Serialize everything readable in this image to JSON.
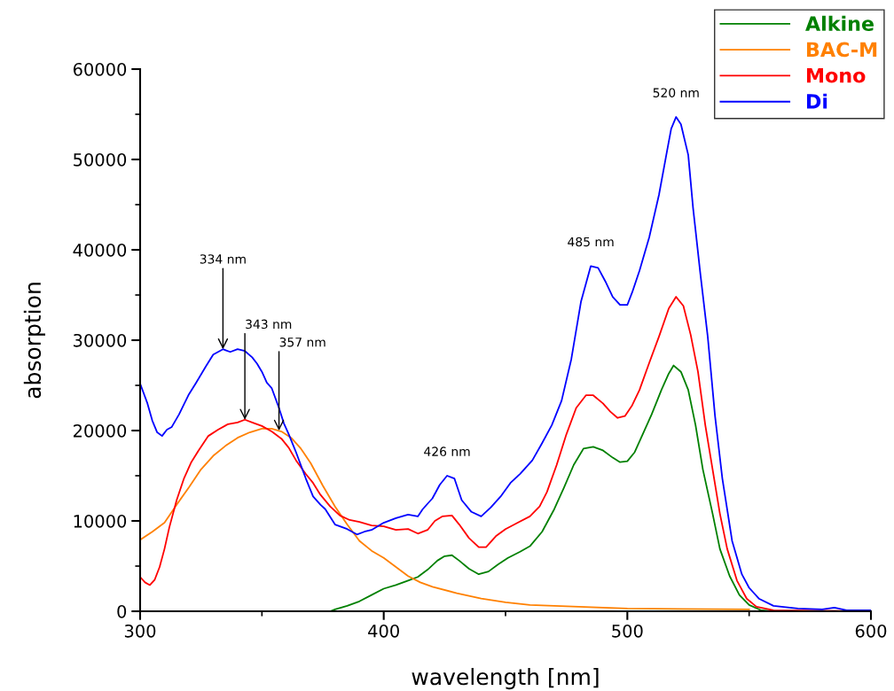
{
  "chart_data": {
    "type": "line",
    "xlabel": "wavelength [nm]",
    "ylabel": "absorption",
    "xlim": [
      300,
      600
    ],
    "xticks": [
      300,
      {
        "value": 350,
        "label": null
      },
      400,
      {
        "value": 450,
        "label": null
      },
      500,
      {
        "value": 550,
        "label": null
      },
      600
    ],
    "ylim": [
      0,
      60000
    ],
    "yticks": [
      0,
      {
        "value": 5000,
        "label": null
      },
      10000,
      {
        "value": 15000,
        "label": null
      },
      20000,
      {
        "value": 25000,
        "label": null
      },
      30000,
      {
        "value": 35000,
        "label": null
      },
      40000,
      {
        "value": 45000,
        "label": null
      },
      50000,
      {
        "value": 55000,
        "label": null
      },
      60000
    ],
    "grid": false,
    "legend": "top right",
    "line_style": "solid",
    "marker": "none",
    "annotations": [
      {
        "text": "334 nm",
        "x": 334,
        "y": 29000
      },
      {
        "text": "343 nm",
        "x": 343,
        "y": 21200
      },
      {
        "text": "357 nm",
        "x": 357,
        "y": 20000
      },
      {
        "text": "426 nm",
        "x": 426,
        "y": 15000
      },
      {
        "text": "485 nm",
        "x": 485,
        "y": 38200
      },
      {
        "text": "520 nm",
        "x": 520,
        "y": 54700
      }
    ],
    "series": [
      {
        "name": "Alkine",
        "color": "#008000",
        "x": [
          378,
          380,
          385,
          390,
          395,
          400,
          405,
          410,
          414,
          418,
          422,
          425,
          428,
          431,
          435,
          439,
          443,
          447,
          451,
          456,
          460,
          465,
          470,
          474,
          478,
          482,
          486,
          490,
          494,
          497,
          500,
          503,
          506,
          510,
          514,
          517,
          519,
          522,
          525,
          528,
          531,
          535,
          538,
          542,
          546,
          550,
          555,
          560,
          600
        ],
        "values": [
          0,
          200,
          600,
          1100,
          1800,
          2500,
          2900,
          3400,
          3800,
          4600,
          5600,
          6100,
          6200,
          5600,
          4700,
          4100,
          4400,
          5200,
          5900,
          6600,
          7200,
          8800,
          11300,
          13700,
          16200,
          18000,
          18200,
          17800,
          17000,
          16500,
          16600,
          17600,
          19400,
          21800,
          24500,
          26300,
          27200,
          26500,
          24500,
          20600,
          15700,
          10800,
          6900,
          3900,
          1800,
          700,
          100,
          0,
          0
        ]
      },
      {
        "name": "BAC-M",
        "color": "#ff8000",
        "x": [
          300,
          305,
          310,
          315,
          320,
          325,
          330,
          335,
          340,
          345,
          350,
          354,
          358,
          362,
          366,
          370,
          375,
          380,
          385,
          390,
          395,
          400,
          405,
          410,
          415,
          420,
          430,
          440,
          450,
          460,
          480,
          500,
          550
        ],
        "values": [
          7900,
          8800,
          9800,
          11800,
          13700,
          15700,
          17200,
          18300,
          19200,
          19800,
          20200,
          20200,
          19900,
          19200,
          18000,
          16400,
          13900,
          11600,
          9600,
          7800,
          6700,
          5900,
          4900,
          3900,
          3200,
          2700,
          2000,
          1400,
          1000,
          700,
          500,
          300,
          200
        ]
      },
      {
        "name": "Mono",
        "color": "#ff0000",
        "x": [
          300,
          302,
          304,
          306,
          308,
          310,
          312,
          315,
          318,
          321,
          324,
          328,
          332,
          336,
          340,
          343,
          346,
          350,
          354,
          358,
          361,
          364,
          368,
          371,
          374,
          378,
          382,
          386,
          390,
          395,
          400,
          405,
          410,
          414,
          418,
          421,
          424,
          428,
          431,
          435,
          439,
          442,
          446,
          450,
          455,
          460,
          464,
          467,
          471,
          475,
          479,
          483,
          486,
          490,
          493,
          496,
          499,
          502,
          505,
          509,
          513,
          517,
          520,
          523,
          526,
          529,
          532,
          535,
          538,
          541,
          545,
          549,
          553,
          560,
          600
        ],
        "values": [
          3800,
          3200,
          2900,
          3500,
          4900,
          6900,
          9300,
          12300,
          14700,
          16500,
          17800,
          19400,
          20100,
          20700,
          20900,
          21200,
          20900,
          20500,
          19900,
          19100,
          18100,
          16700,
          15200,
          14200,
          12900,
          11600,
          10600,
          10100,
          9900,
          9500,
          9400,
          9000,
          9100,
          8600,
          9000,
          10000,
          10500,
          10600,
          9600,
          8100,
          7100,
          7100,
          8300,
          9100,
          9800,
          10500,
          11600,
          13200,
          16200,
          19600,
          22500,
          23900,
          23900,
          23000,
          22100,
          21400,
          21600,
          22800,
          24500,
          27500,
          30400,
          33500,
          34800,
          33800,
          30600,
          26500,
          20600,
          15700,
          10800,
          6900,
          3400,
          1400,
          500,
          100,
          0
        ]
      },
      {
        "name": "Di",
        "color": "#0000ff",
        "x": [
          300,
          303,
          305,
          307,
          309,
          311,
          313,
          316,
          320,
          323,
          327,
          330,
          334,
          337,
          340,
          343,
          346,
          348,
          350,
          352,
          354,
          357,
          359,
          361,
          364,
          368,
          371,
          374,
          376,
          380,
          385,
          389,
          392,
          395,
          400,
          405,
          410,
          414,
          416,
          420,
          423,
          426,
          429,
          432,
          436,
          440,
          444,
          448,
          452,
          456,
          461,
          465,
          469,
          473,
          477,
          481,
          485,
          488,
          491,
          494,
          497,
          500,
          502,
          505,
          509,
          513,
          516,
          518,
          520,
          522,
          525,
          527,
          530,
          533,
          536,
          539,
          543,
          547,
          550,
          554,
          560,
          570,
          580,
          585,
          590,
          600
        ],
        "values": [
          25200,
          23000,
          21100,
          19800,
          19400,
          20100,
          20400,
          21800,
          24000,
          25300,
          27100,
          28400,
          29000,
          28700,
          29000,
          28800,
          28100,
          27400,
          26500,
          25300,
          24700,
          22500,
          20800,
          19600,
          17600,
          14700,
          12700,
          11800,
          11300,
          9600,
          9100,
          8500,
          8800,
          9000,
          9800,
          10300,
          10700,
          10500,
          11300,
          12500,
          14000,
          15000,
          14700,
          12300,
          11000,
          10500,
          11500,
          12700,
          14200,
          15200,
          16700,
          18600,
          20600,
          23300,
          27900,
          34300,
          38200,
          38000,
          36500,
          34800,
          33900,
          33900,
          35300,
          37700,
          41400,
          46100,
          50500,
          53400,
          54700,
          53900,
          50500,
          44600,
          37300,
          30400,
          21600,
          14700,
          7800,
          4100,
          2600,
          1400,
          600,
          300,
          200,
          400,
          100,
          100
        ]
      }
    ]
  }
}
